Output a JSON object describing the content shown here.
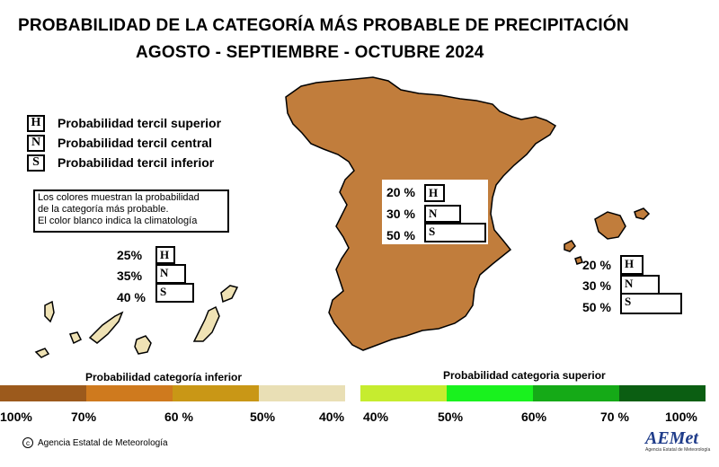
{
  "title": {
    "line1": "PROBABILIDAD DE LA CATEGORÍA MÁS PROBABLE DE PRECIPITACIÓN",
    "line2": "AGOSTO - SEPTIEMBRE - OCTUBRE 2024"
  },
  "legend": [
    {
      "code": "H",
      "label": "Probabilidad  tercil superior"
    },
    {
      "code": "N",
      "label": "Probabilidad  tercil central"
    },
    {
      "code": "S",
      "label": "Probabilidad  tercil inferior"
    }
  ],
  "note": {
    "line1": "Los colores muestran la probabilidad",
    "line2": "de la categoría más probable.",
    "line3": "El color blanco indica la climatología"
  },
  "regions": {
    "peninsula": {
      "H": "20 %",
      "N": "30 %",
      "S": "50 %",
      "fill": "#c17d3c"
    },
    "baleares": {
      "H": "20 %",
      "N": "30 %",
      "S": "50 %",
      "fill": "#c17d3c"
    },
    "canarias": {
      "H": "25%",
      "N": "35%",
      "S": "40 %",
      "fill": "#efe2b4"
    }
  },
  "scale": {
    "inferior_title": "Probabilidad categoría inferior",
    "superior_title": "Probabilidad categoria superior",
    "inferior_colors": [
      "#9c5a1c",
      "#cf7a1e",
      "#c99716",
      "#e9dfb5",
      "#ffffff"
    ],
    "superior_colors": [
      "#c6ec2f",
      "#19f21e",
      "#15aa17",
      "#0b5e12"
    ],
    "labels": [
      "100%",
      "70%",
      "60 %",
      "50%",
      "40%",
      "40%",
      "50%",
      "60%",
      "70 %",
      "100%"
    ]
  },
  "footer": {
    "copyright": "c",
    "agency": "Agencia Estatal de Meteorología",
    "logo": "AEMet",
    "logo_sub": "Agencia Estatal de Meteorología"
  }
}
